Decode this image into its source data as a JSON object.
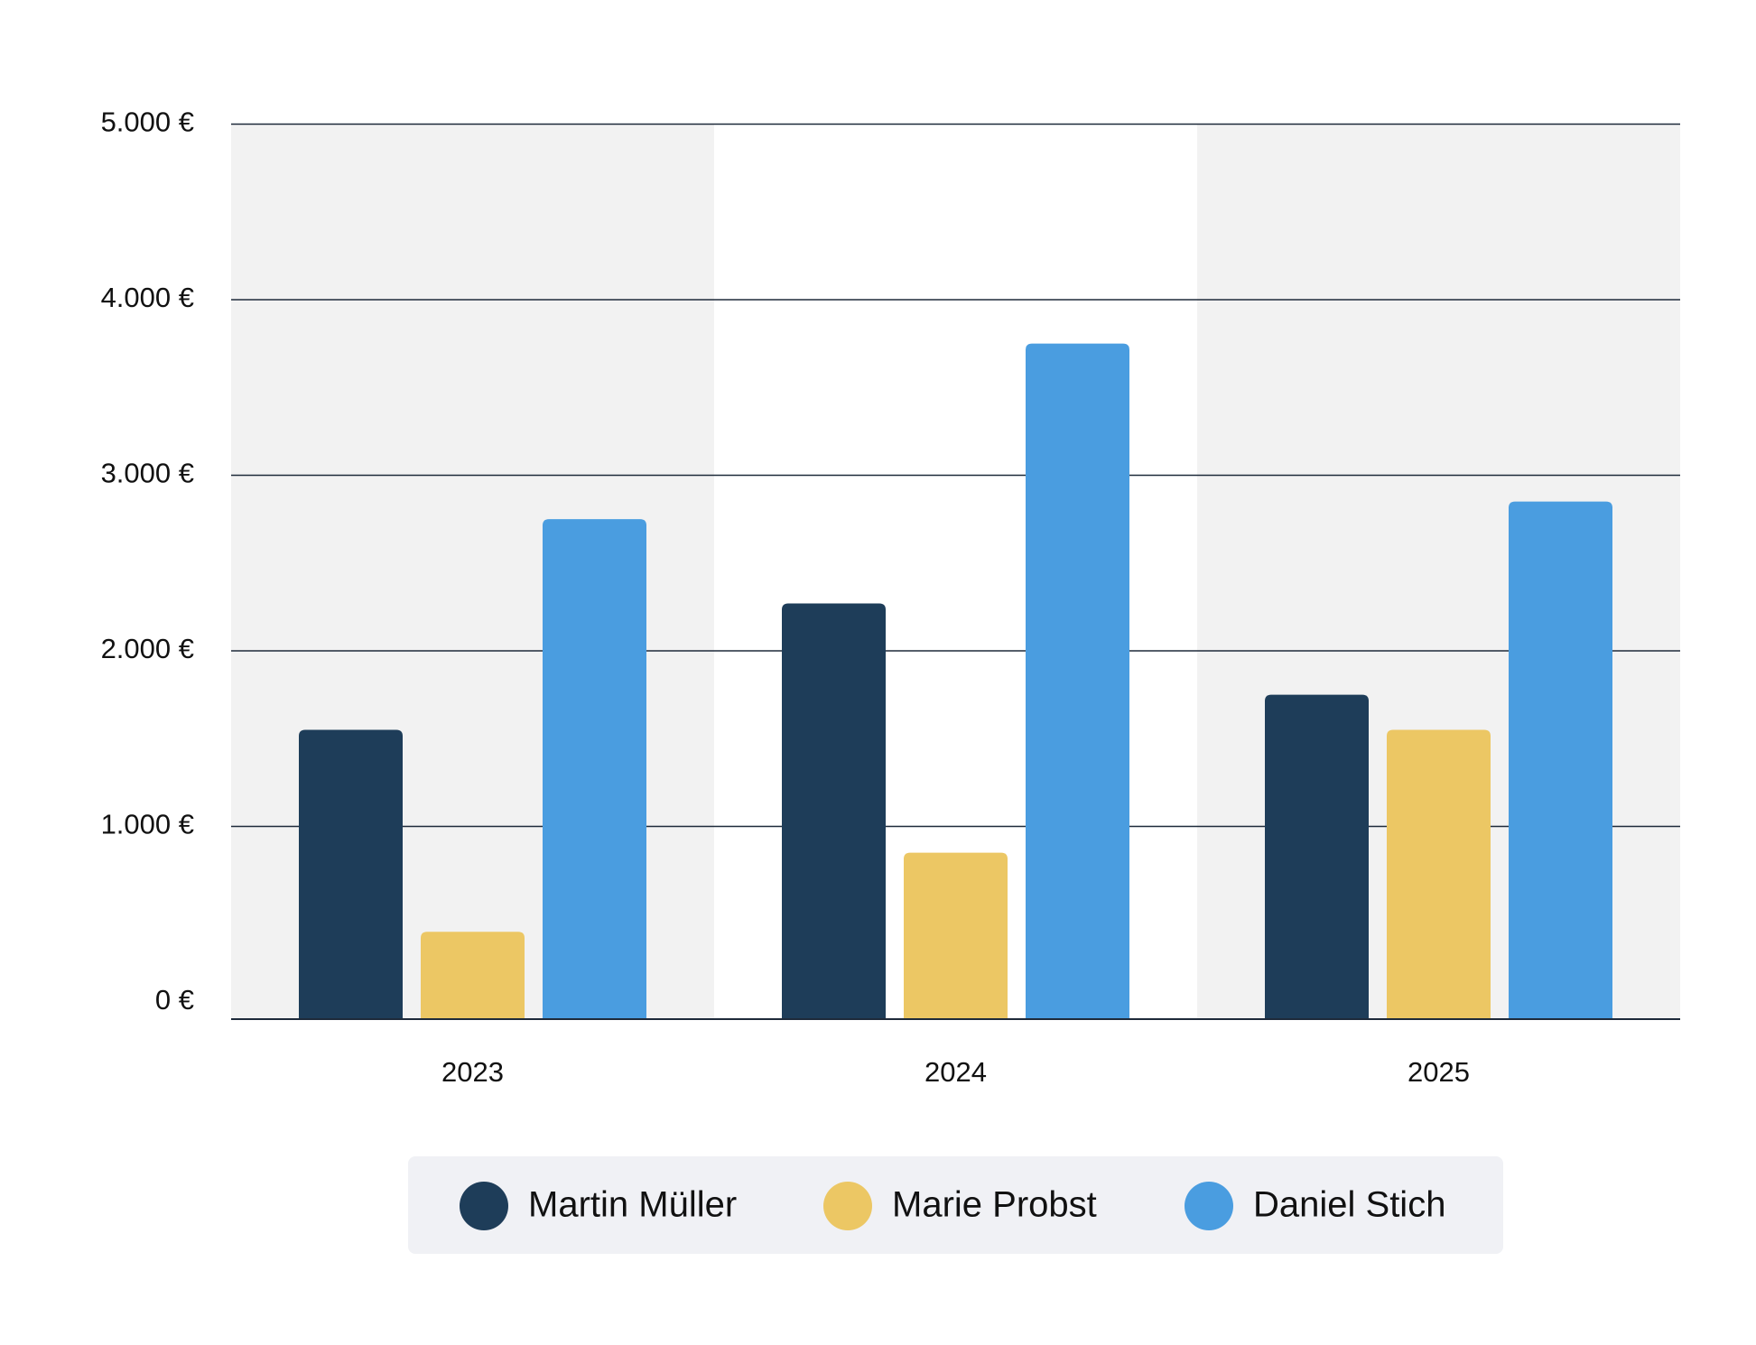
{
  "chart_data": {
    "type": "bar",
    "categories": [
      "2023",
      "2024",
      "2025"
    ],
    "series": [
      {
        "name": "Martin Müller",
        "color": "#1e3d59",
        "values": [
          1550,
          2270,
          1750
        ]
      },
      {
        "name": "Marie Probst",
        "color": "#ecc764",
        "values": [
          400,
          850,
          1550
        ]
      },
      {
        "name": "Daniel Stich",
        "color": "#4a9de0",
        "values": [
          2750,
          3750,
          2850
        ]
      }
    ],
    "ylim": [
      0,
      5000
    ],
    "yticks": [
      {
        "value": 0,
        "label": "0 €"
      },
      {
        "value": 1000,
        "label": "1.000 €"
      },
      {
        "value": 2000,
        "label": "2.000 €"
      },
      {
        "value": 3000,
        "label": "3.000 €"
      },
      {
        "value": 4000,
        "label": "4.000 €"
      },
      {
        "value": 5000,
        "label": "5.000 €"
      }
    ],
    "grid": true,
    "legend": "bottom"
  }
}
